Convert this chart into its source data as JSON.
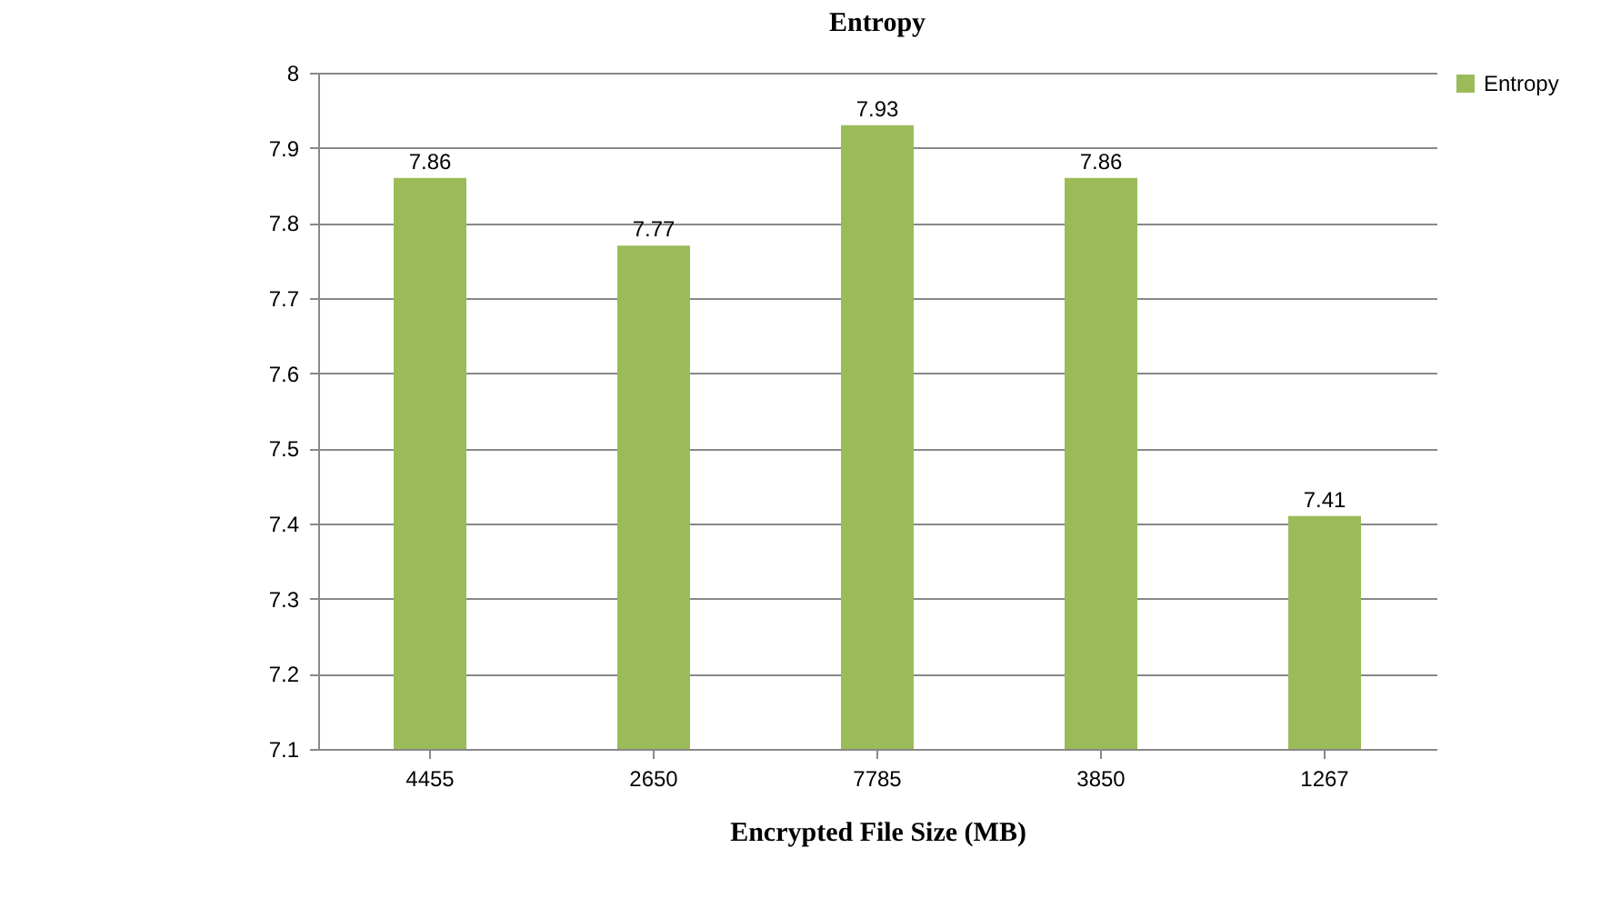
{
  "chart_data": {
    "type": "bar",
    "title": "Entropy",
    "xlabel": "Encrypted File Size (MB)",
    "categories": [
      "4455",
      "2650",
      "7785",
      "3850",
      "1267"
    ],
    "series": [
      {
        "name": "Entropy",
        "color": "#9bbb59",
        "values": [
          7.86,
          7.77,
          7.93,
          7.86,
          7.41
        ]
      }
    ],
    "ylim": [
      7.1,
      8
    ],
    "yticks": [
      7.1,
      7.2,
      7.3,
      7.4,
      7.5,
      7.6,
      7.7,
      7.8,
      7.9,
      8
    ],
    "grid": "y",
    "legend": "right",
    "data_labels": true
  }
}
